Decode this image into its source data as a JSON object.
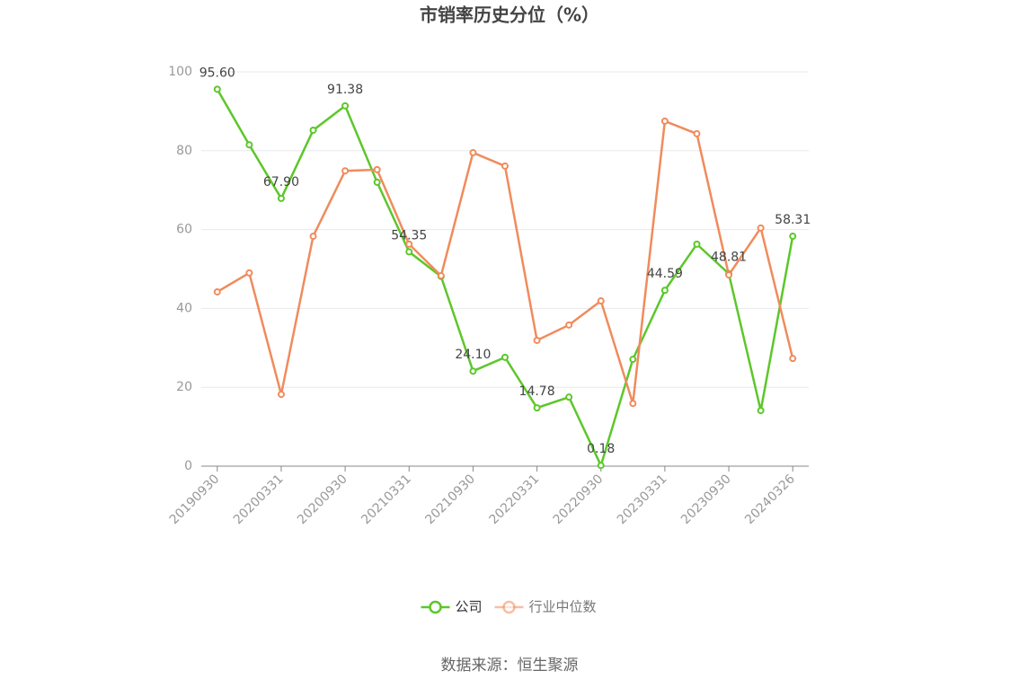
{
  "chart_data": {
    "type": "line",
    "title": "市销率历史分位（%）",
    "categories": [
      "20190930",
      null,
      "20200331",
      null,
      "20200930",
      null,
      "20210331",
      null,
      "20210930",
      null,
      "20220331",
      null,
      "20220930",
      null,
      "20230331",
      null,
      "20230930",
      null,
      "20240326"
    ],
    "series": [
      {
        "name": "公司",
        "color": "#5cc72a",
        "values": [
          95.6,
          81.5,
          67.9,
          85.2,
          91.38,
          72.0,
          54.35,
          48.1,
          24.1,
          27.6,
          14.78,
          17.5,
          0.18,
          27.1,
          44.59,
          56.3,
          48.81,
          14.1,
          58.31
        ],
        "value_labels": [
          "95.60",
          null,
          "67.90",
          null,
          "91.38",
          null,
          "54.35",
          null,
          "24.10",
          null,
          "14.78",
          null,
          "0.18",
          null,
          "44.59",
          null,
          "48.81",
          null,
          "58.31"
        ]
      },
      {
        "name": "行业中位数",
        "color": "#f08b5c",
        "values": [
          44.2,
          49.0,
          18.2,
          58.3,
          74.9,
          75.2,
          56.3,
          48.3,
          79.5,
          76.1,
          31.9,
          35.8,
          41.9,
          15.9,
          87.5,
          84.3,
          48.5,
          60.4,
          27.3
        ]
      }
    ],
    "ylim": [
      0,
      100
    ],
    "yticks": [
      0,
      20,
      40,
      60,
      80,
      100
    ],
    "grid": true,
    "legend": "bottom",
    "source": "数据来源：恒生聚源"
  }
}
